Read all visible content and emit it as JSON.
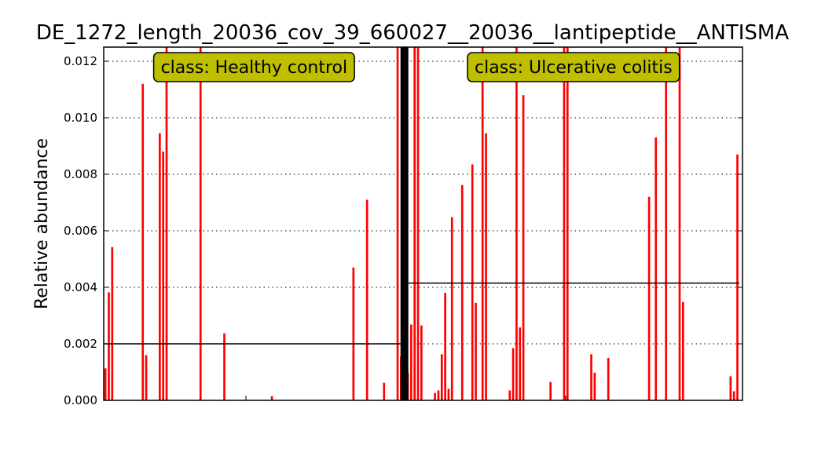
{
  "chart_data": {
    "type": "bar",
    "title": "DE_1272_length_20036_cov_39_660027__20036__lantipeptide__ANTISMA",
    "xlabel": "",
    "ylabel": "Relative abundance",
    "ylim": [
      0,
      0.0125
    ],
    "yticks": [
      "0.000",
      "0.002",
      "0.004",
      "0.006",
      "0.008",
      "0.010",
      "0.012"
    ],
    "ytick_values": [
      0,
      0.002,
      0.004,
      0.006,
      0.008,
      0.01,
      0.012
    ],
    "grid": true,
    "bar_color": "#ff0000",
    "classes": [
      {
        "label": "class: Healthy control",
        "mean": 0.002,
        "values": [
          0.00113,
          0.00382,
          0.00542,
          0,
          0,
          0,
          0,
          0,
          0,
          0,
          0,
          0.0112,
          0.0016,
          0,
          0,
          0,
          0.00945,
          0.0088,
          0.0125,
          0,
          0,
          0,
          0,
          0,
          0,
          0,
          0,
          0,
          0.0125,
          0,
          0,
          0,
          0,
          0,
          0,
          0.00237,
          0,
          0,
          0,
          0,
          0,
          0,
          0,
          0,
          0,
          0,
          0,
          0,
          0,
          0.00015,
          0,
          0,
          0,
          0,
          0,
          0,
          0,
          0,
          0,
          0,
          0,
          0,
          0,
          0,
          0,
          0,
          0,
          0,
          0,
          0,
          0,
          0,
          0,
          0.0047,
          0,
          0,
          0,
          0.0071,
          0,
          0,
          0,
          0,
          0.00062,
          0,
          0,
          0,
          0.0125,
          0.00155
        ]
      },
      {
        "label": "class: Ulcerative colitis",
        "mean": 0.00415,
        "values": [
          0.00098,
          0.00268,
          0.0125,
          0.0125,
          0.00265,
          0,
          0,
          0,
          0.00026,
          0.00035,
          0.00163,
          0.0038,
          0.00041,
          0.00648,
          0,
          0,
          0.00762,
          0,
          0,
          0.00835,
          0.00345,
          0,
          0.0125,
          0.00945,
          0,
          0,
          0,
          0,
          0,
          0,
          0.00035,
          0.00185,
          0.0125,
          0.00258,
          0.0108,
          0,
          0,
          0,
          0,
          0,
          0,
          0,
          0.00065,
          0,
          0,
          0,
          0.0125,
          0.0125,
          0,
          0,
          0,
          0,
          0,
          0,
          0.00163,
          0.00098,
          0,
          0,
          0,
          0.0015,
          0,
          0,
          0,
          0,
          0,
          0,
          0,
          0,
          0,
          0,
          0,
          0.0072,
          0,
          0.0093,
          0,
          0,
          0.0125,
          0,
          0,
          0,
          0.0125,
          0.00348,
          0,
          0,
          0,
          0,
          0,
          0,
          0,
          0,
          0,
          0,
          0,
          0,
          0,
          0.00085,
          0.00032,
          0.0087,
          0
        ]
      }
    ]
  }
}
